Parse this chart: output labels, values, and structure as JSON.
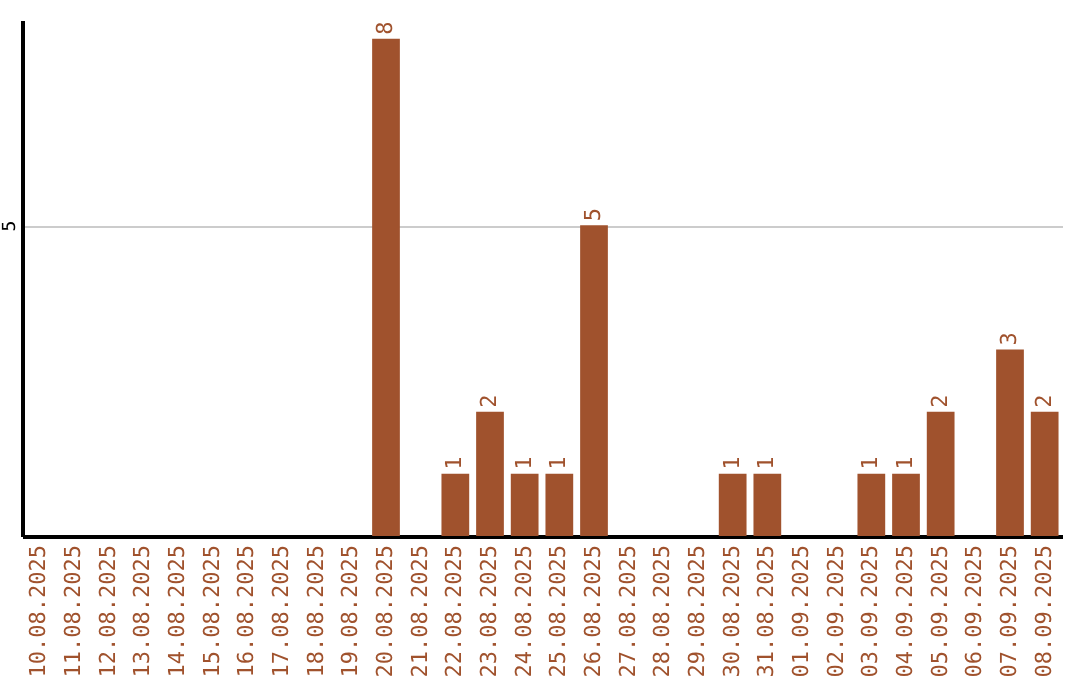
{
  "chart_data": {
    "type": "bar",
    "categories": [
      "10.08.2025",
      "11.08.2025",
      "12.08.2025",
      "13.08.2025",
      "14.08.2025",
      "15.08.2025",
      "16.08.2025",
      "17.08.2025",
      "18.08.2025",
      "19.08.2025",
      "20.08.2025",
      "21.08.2025",
      "22.08.2025",
      "23.08.2025",
      "24.08.2025",
      "25.08.2025",
      "26.08.2025",
      "27.08.2025",
      "28.08.2025",
      "29.08.2025",
      "30.08.2025",
      "31.08.2025",
      "01.09.2025",
      "02.09.2025",
      "03.09.2025",
      "04.09.2025",
      "05.09.2025",
      "06.09.2025",
      "07.09.2025",
      "08.09.2025"
    ],
    "values": [
      0,
      0,
      0,
      0,
      0,
      0,
      0,
      0,
      0,
      0,
      8,
      0,
      1,
      2,
      1,
      1,
      5,
      0,
      0,
      0,
      1,
      1,
      0,
      0,
      1,
      1,
      2,
      0,
      3,
      2
    ],
    "value_labels": [
      null,
      null,
      null,
      null,
      null,
      null,
      null,
      null,
      null,
      null,
      "8",
      null,
      "1",
      "2",
      "1",
      "1",
      "5",
      null,
      null,
      null,
      "1",
      "1",
      null,
      null,
      "1",
      "1",
      "2",
      null,
      "3",
      "2"
    ],
    "color": "#a0522d",
    "ylim": [
      0,
      8.3
    ],
    "yticks": [
      5
    ],
    "grid": "y"
  }
}
